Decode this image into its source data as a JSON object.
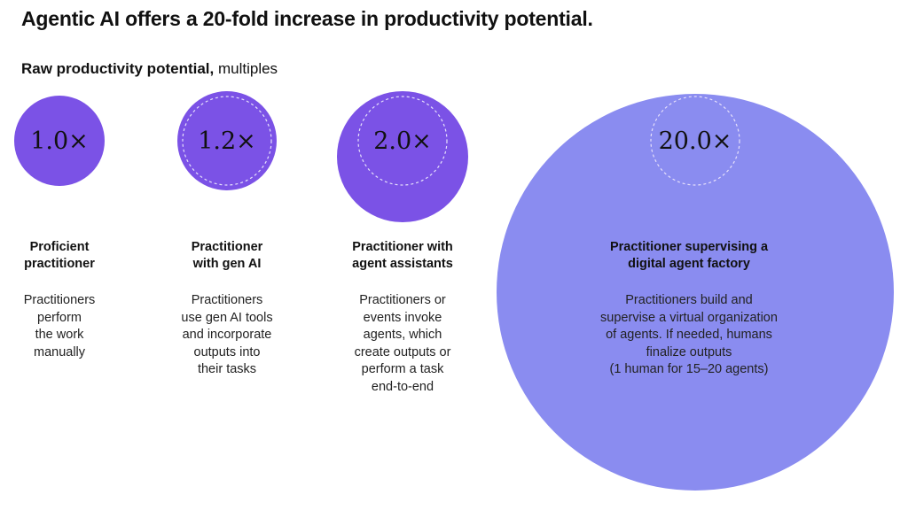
{
  "title": "Agentic AI offers a 20-fold increase in productivity potential.",
  "subtitle_bold": "Raw productivity potential,",
  "subtitle_rest": " multiples",
  "colors": {
    "circle_dark": "#7b52e6",
    "circle_light": "#8a8cf0",
    "dashed_outline": "#e6e0fb"
  },
  "chart_data": {
    "type": "bubble",
    "title": "Raw productivity potential, multiples",
    "categories": [
      "Proficient practitioner",
      "Practitioner with gen AI",
      "Practitioner with agent assistants",
      "Practitioner supervising a digital agent factory"
    ],
    "values": [
      1.0,
      1.2,
      2.0,
      20.0
    ],
    "value_labels": [
      "1.0×",
      "1.2×",
      "2.0×",
      "20.0×"
    ],
    "reference_outline": "dashed circle showing baseline 1.0× size"
  },
  "stages": [
    {
      "title_lines": [
        "Proficient",
        "practitioner"
      ],
      "desc_lines": [
        "Practitioners",
        "perform",
        "the work",
        "manually"
      ]
    },
    {
      "title_lines": [
        "Practitioner",
        "with gen AI"
      ],
      "desc_lines": [
        "Practitioners",
        "use gen AI tools",
        "and incorporate",
        "outputs into",
        "their tasks"
      ]
    },
    {
      "title_lines": [
        "Practitioner with",
        "agent assistants"
      ],
      "desc_lines": [
        "Practitioners or",
        "events invoke",
        "agents, which",
        "create outputs or",
        "perform a task",
        "end-to-end"
      ]
    },
    {
      "title_lines": [
        "Practitioner supervising a",
        "digital agent factory"
      ],
      "desc_lines": [
        "Practitioners build and",
        "supervise a virtual organization",
        "of agents. If needed, humans",
        "finalize outputs",
        "(1 human for 15–20 agents)"
      ]
    }
  ]
}
